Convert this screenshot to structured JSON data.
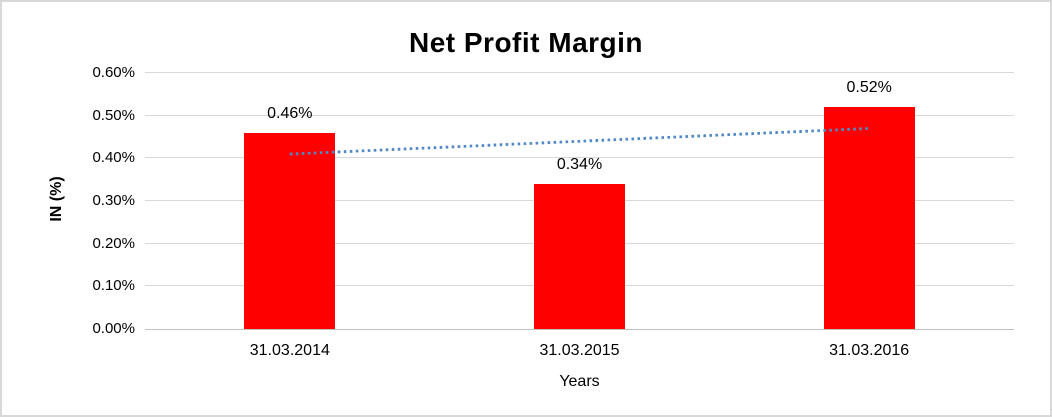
{
  "figure": {
    "background": "#ffffff",
    "border_color": "#d8d8d8"
  },
  "chart_data": {
    "type": "bar",
    "title": "Net Profit Margin",
    "xlabel": "Years",
    "ylabel": "IN (%)",
    "categories": [
      "31.03.2014",
      "31.03.2015",
      "31.03.2016"
    ],
    "values": [
      0.46,
      0.34,
      0.52
    ],
    "data_labels": [
      "0.46%",
      "0.34%",
      "0.52%"
    ],
    "unit": "%",
    "ylim": [
      0,
      0.6
    ],
    "ytick_step": 0.1,
    "ytick_labels": [
      "0.00%",
      "0.10%",
      "0.20%",
      "0.30%",
      "0.40%",
      "0.50%",
      "0.60%"
    ],
    "grid": true,
    "legend": "none",
    "bar_color": "#ff0000",
    "gridline_color": "#d9d9d9",
    "axisline_color": "#bfbfbf",
    "text_color": "#000000",
    "trendline": {
      "type": "linear",
      "style": "dotted",
      "color": "#5089c6",
      "start_value": 0.41,
      "end_value": 0.47
    }
  }
}
